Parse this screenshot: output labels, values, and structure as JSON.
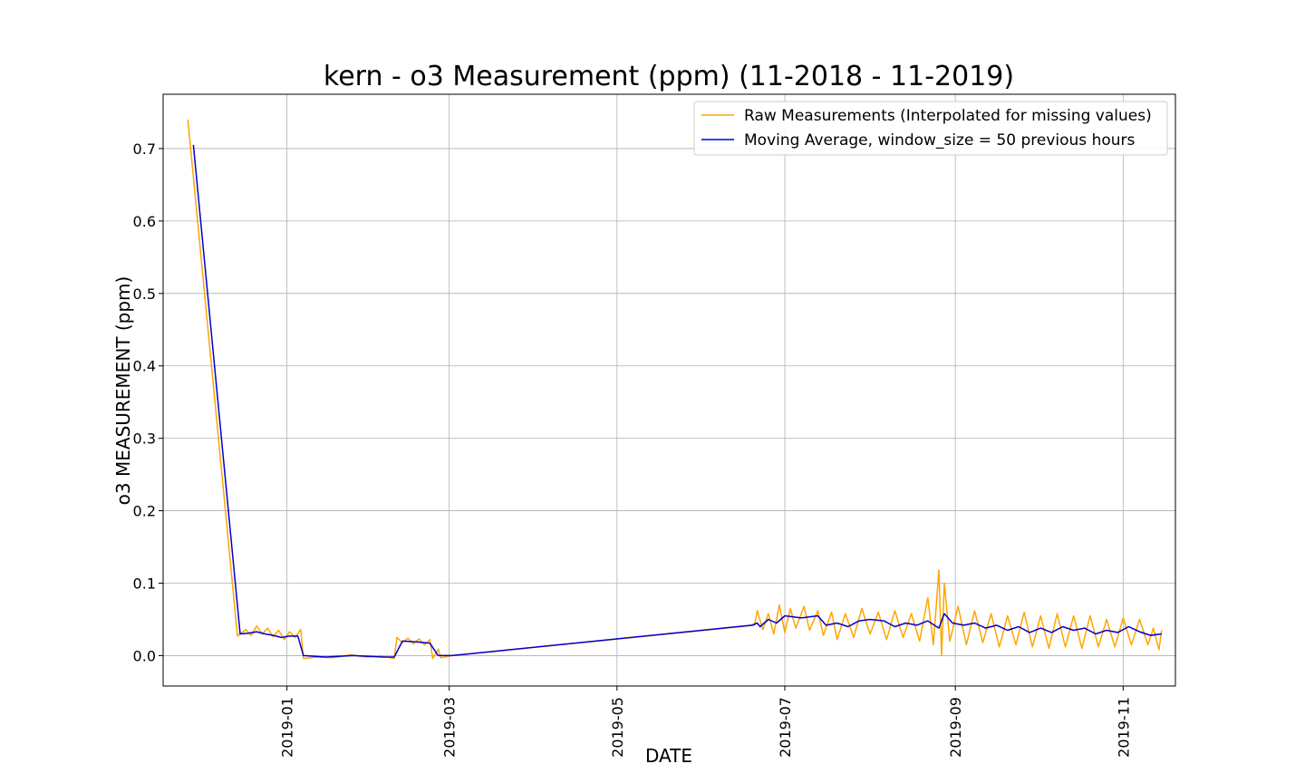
{
  "chart_data": {
    "type": "line",
    "title": "kern - o3 Measurement (ppm) (11-2018 - 11-2019)",
    "xlabel": "DATE",
    "ylabel": "o3 MEASUREMENT (ppm)",
    "xlim": [
      "2018-11-17",
      "2019-11-20"
    ],
    "ylim": [
      -0.042,
      0.775
    ],
    "x_ticks": [
      "2019-01",
      "2019-03",
      "2019-05",
      "2019-07",
      "2019-09",
      "2019-11"
    ],
    "y_ticks": [
      "0.0",
      "0.1",
      "0.2",
      "0.3",
      "0.4",
      "0.5",
      "0.6",
      "0.7"
    ],
    "grid": true,
    "legend_position": "top-right",
    "colors": {
      "raw": "#ffa500",
      "moving_average": "#0000cd"
    },
    "series": [
      {
        "name": "Raw Measurements (Interpolated for missing values)",
        "color": "#ffa500",
        "points": [
          [
            "2018-11-26",
            0.74
          ],
          [
            "2018-12-14",
            0.027
          ],
          [
            "2018-12-15",
            0.03
          ],
          [
            "2018-12-17",
            0.036
          ],
          [
            "2018-12-19",
            0.028
          ],
          [
            "2018-12-21",
            0.041
          ],
          [
            "2018-12-23",
            0.03
          ],
          [
            "2018-12-25",
            0.038
          ],
          [
            "2018-12-27",
            0.026
          ],
          [
            "2018-12-29",
            0.035
          ],
          [
            "2018-12-31",
            0.022
          ],
          [
            "2019-01-02",
            0.033
          ],
          [
            "2019-01-04",
            0.025
          ],
          [
            "2019-01-06",
            0.036
          ],
          [
            "2019-01-07",
            -0.004
          ],
          [
            "2019-01-12",
            -0.002
          ],
          [
            "2019-01-18",
            -0.003
          ],
          [
            "2019-01-24",
            0.001
          ],
          [
            "2019-01-30",
            -0.002
          ],
          [
            "2019-02-04",
            0.0
          ],
          [
            "2019-02-09",
            -0.004
          ],
          [
            "2019-02-10",
            0.025
          ],
          [
            "2019-02-12",
            0.018
          ],
          [
            "2019-02-14",
            0.024
          ],
          [
            "2019-02-16",
            0.016
          ],
          [
            "2019-02-18",
            0.023
          ],
          [
            "2019-02-20",
            0.015
          ],
          [
            "2019-02-22",
            0.022
          ],
          [
            "2019-02-23",
            -0.004
          ],
          [
            "2019-02-25",
            0.009
          ],
          [
            "2019-02-26",
            -0.003
          ],
          [
            "2019-03-02",
            0.0
          ],
          [
            "2019-06-20",
            0.042
          ],
          [
            "2019-06-21",
            0.062
          ],
          [
            "2019-06-23",
            0.036
          ],
          [
            "2019-06-25",
            0.058
          ],
          [
            "2019-06-27",
            0.03
          ],
          [
            "2019-06-29",
            0.07
          ],
          [
            "2019-07-01",
            0.032
          ],
          [
            "2019-07-03",
            0.065
          ],
          [
            "2019-07-05",
            0.038
          ],
          [
            "2019-07-08",
            0.068
          ],
          [
            "2019-07-10",
            0.035
          ],
          [
            "2019-07-13",
            0.062
          ],
          [
            "2019-07-15",
            0.028
          ],
          [
            "2019-07-18",
            0.06
          ],
          [
            "2019-07-20",
            0.022
          ],
          [
            "2019-07-23",
            0.058
          ],
          [
            "2019-07-26",
            0.025
          ],
          [
            "2019-07-29",
            0.065
          ],
          [
            "2019-08-01",
            0.03
          ],
          [
            "2019-08-04",
            0.06
          ],
          [
            "2019-08-07",
            0.022
          ],
          [
            "2019-08-10",
            0.062
          ],
          [
            "2019-08-13",
            0.025
          ],
          [
            "2019-08-16",
            0.058
          ],
          [
            "2019-08-19",
            0.02
          ],
          [
            "2019-08-22",
            0.08
          ],
          [
            "2019-08-24",
            0.015
          ],
          [
            "2019-08-26",
            0.118
          ],
          [
            "2019-08-27",
            0.0
          ],
          [
            "2019-08-28",
            0.1
          ],
          [
            "2019-08-30",
            0.02
          ],
          [
            "2019-09-02",
            0.068
          ],
          [
            "2019-09-05",
            0.015
          ],
          [
            "2019-09-08",
            0.062
          ],
          [
            "2019-09-11",
            0.018
          ],
          [
            "2019-09-14",
            0.058
          ],
          [
            "2019-09-17",
            0.012
          ],
          [
            "2019-09-20",
            0.055
          ],
          [
            "2019-09-23",
            0.015
          ],
          [
            "2019-09-26",
            0.06
          ],
          [
            "2019-09-29",
            0.012
          ],
          [
            "2019-10-02",
            0.055
          ],
          [
            "2019-10-05",
            0.01
          ],
          [
            "2019-10-08",
            0.058
          ],
          [
            "2019-10-11",
            0.012
          ],
          [
            "2019-10-14",
            0.055
          ],
          [
            "2019-10-17",
            0.01
          ],
          [
            "2019-10-20",
            0.055
          ],
          [
            "2019-10-23",
            0.012
          ],
          [
            "2019-10-26",
            0.05
          ],
          [
            "2019-10-29",
            0.012
          ],
          [
            "2019-11-01",
            0.052
          ],
          [
            "2019-11-04",
            0.015
          ],
          [
            "2019-11-07",
            0.05
          ],
          [
            "2019-11-10",
            0.015
          ],
          [
            "2019-11-12",
            0.038
          ],
          [
            "2019-11-14",
            0.008
          ],
          [
            "2019-11-15",
            0.035
          ]
        ]
      },
      {
        "name": "Moving Average, window_size = 50 previous hours",
        "color": "#0000cd",
        "points": [
          [
            "2018-11-28",
            0.705
          ],
          [
            "2018-12-15",
            0.03
          ],
          [
            "2018-12-18",
            0.031
          ],
          [
            "2018-12-21",
            0.033
          ],
          [
            "2018-12-24",
            0.03
          ],
          [
            "2018-12-27",
            0.028
          ],
          [
            "2018-12-30",
            0.025
          ],
          [
            "2019-01-02",
            0.027
          ],
          [
            "2019-01-05",
            0.027
          ],
          [
            "2019-01-07",
            0.0
          ],
          [
            "2019-01-15",
            -0.002
          ],
          [
            "2019-01-25",
            0.0
          ],
          [
            "2019-02-05",
            -0.002
          ],
          [
            "2019-02-09",
            -0.002
          ],
          [
            "2019-02-12",
            0.02
          ],
          [
            "2019-02-17",
            0.019
          ],
          [
            "2019-02-22",
            0.017
          ],
          [
            "2019-02-25",
            0.0
          ],
          [
            "2019-03-02",
            0.0
          ],
          [
            "2019-06-19",
            0.042
          ],
          [
            "2019-06-21",
            0.045
          ],
          [
            "2019-06-22",
            0.04
          ],
          [
            "2019-06-25",
            0.05
          ],
          [
            "2019-06-28",
            0.045
          ],
          [
            "2019-07-01",
            0.055
          ],
          [
            "2019-07-07",
            0.052
          ],
          [
            "2019-07-13",
            0.055
          ],
          [
            "2019-07-16",
            0.042
          ],
          [
            "2019-07-20",
            0.045
          ],
          [
            "2019-07-24",
            0.04
          ],
          [
            "2019-07-28",
            0.048
          ],
          [
            "2019-08-01",
            0.05
          ],
          [
            "2019-08-06",
            0.048
          ],
          [
            "2019-08-10",
            0.04
          ],
          [
            "2019-08-14",
            0.045
          ],
          [
            "2019-08-18",
            0.042
          ],
          [
            "2019-08-22",
            0.048
          ],
          [
            "2019-08-26",
            0.038
          ],
          [
            "2019-08-28",
            0.058
          ],
          [
            "2019-08-31",
            0.045
          ],
          [
            "2019-09-04",
            0.042
          ],
          [
            "2019-09-08",
            0.045
          ],
          [
            "2019-09-12",
            0.038
          ],
          [
            "2019-09-16",
            0.042
          ],
          [
            "2019-09-20",
            0.035
          ],
          [
            "2019-09-24",
            0.04
          ],
          [
            "2019-09-28",
            0.032
          ],
          [
            "2019-10-02",
            0.038
          ],
          [
            "2019-10-06",
            0.032
          ],
          [
            "2019-10-10",
            0.04
          ],
          [
            "2019-10-14",
            0.035
          ],
          [
            "2019-10-18",
            0.038
          ],
          [
            "2019-10-22",
            0.03
          ],
          [
            "2019-10-26",
            0.035
          ],
          [
            "2019-10-30",
            0.032
          ],
          [
            "2019-11-03",
            0.04
          ],
          [
            "2019-11-07",
            0.033
          ],
          [
            "2019-11-11",
            0.028
          ],
          [
            "2019-11-15",
            0.03
          ]
        ]
      }
    ]
  }
}
